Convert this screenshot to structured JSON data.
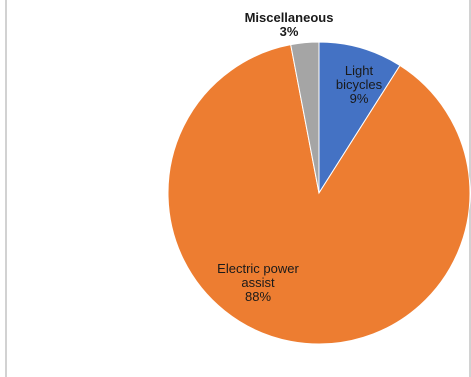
{
  "chart_data": {
    "type": "pie",
    "title": "",
    "legend": "none",
    "slices": [
      {
        "label_lines": [
          "Light",
          "bicycles"
        ],
        "percent_label": "9%",
        "value": 9,
        "color": "#4472c4",
        "label_style": "inside"
      },
      {
        "label_lines": [
          "Electric power",
          "assist"
        ],
        "percent_label": "88%",
        "value": 88,
        "color": "#ed7d31",
        "label_style": "inside"
      },
      {
        "label_lines": [
          "Miscellaneous"
        ],
        "percent_label": "3%",
        "value": 3,
        "color": "#a5a5a5",
        "label_style": "outside"
      }
    ]
  }
}
